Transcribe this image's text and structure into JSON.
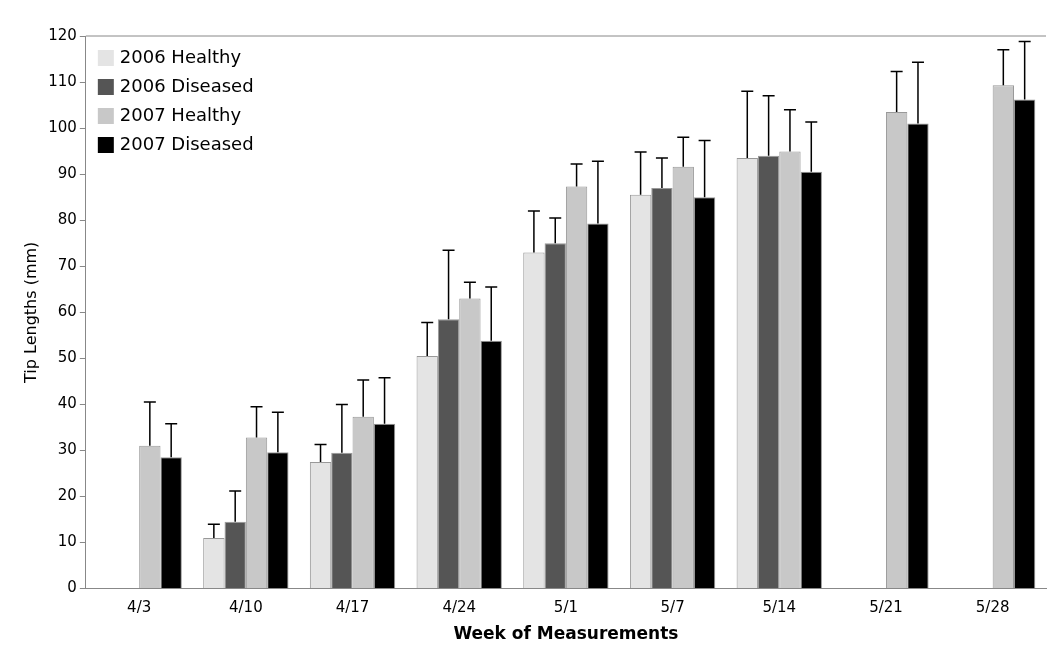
{
  "chart_data": {
    "type": "bar",
    "xlabel": "Week of Measurements",
    "ylabel": "Tip Lengths (mm)",
    "categories": [
      "4/3",
      "4/10",
      "4/17",
      "4/24",
      "5/1",
      "5/7",
      "5/14",
      "5/21",
      "5/28"
    ],
    "series": [
      {
        "name": "2006 Healthy",
        "color": "#e4e4e4",
        "values": [
          null,
          11,
          27.5,
          50.5,
          73,
          85.5,
          93.5,
          null,
          null
        ],
        "errors": [
          null,
          [
            11,
            14
          ],
          [
            27.5,
            31.3
          ],
          [
            50.5,
            57.8
          ],
          [
            73,
            82
          ],
          [
            85.5,
            94.8
          ],
          [
            93.5,
            108
          ],
          null,
          null
        ]
      },
      {
        "name": "2006 Diseased",
        "color": "#555555",
        "values": [
          null,
          14.5,
          29.5,
          58.5,
          75,
          87,
          94,
          null,
          null
        ],
        "errors": [
          null,
          [
            14.5,
            21.2
          ],
          [
            29.5,
            40
          ],
          [
            58.5,
            73.5
          ],
          [
            75,
            80.5
          ],
          [
            87,
            93.5
          ],
          [
            94,
            107
          ],
          null,
          null
        ]
      },
      {
        "name": "2007 Healthy",
        "color": "#c8c8c8",
        "values": [
          31,
          32.8,
          37.3,
          63,
          87.3,
          91.6,
          94.9,
          103.5,
          109.3
        ],
        "errors": [
          [
            31,
            40.5
          ],
          [
            32.8,
            39.5
          ],
          [
            37.3,
            45.3
          ],
          [
            63,
            66.5
          ],
          [
            87.3,
            92.2
          ],
          [
            91.6,
            98
          ],
          [
            94.9,
            104
          ],
          [
            103.5,
            112.3
          ],
          [
            109.3,
            117
          ]
        ]
      },
      {
        "name": "2007 Diseased",
        "color": "#000000",
        "values": [
          28.5,
          29.6,
          35.8,
          53.8,
          79.3,
          85,
          90.5,
          101,
          106.2
        ],
        "errors": [
          [
            28.5,
            35.8
          ],
          [
            29.6,
            38.3
          ],
          [
            35.8,
            45.8
          ],
          [
            53.8,
            65.5
          ],
          [
            79.3,
            92.8
          ],
          [
            85,
            97.3
          ],
          [
            90.5,
            101.3
          ],
          [
            101,
            114.3
          ],
          [
            106.2,
            118.8
          ]
        ]
      }
    ],
    "ylim": [
      0,
      120
    ],
    "yticks": [
      0,
      10,
      20,
      30,
      40,
      50,
      60,
      70,
      80,
      90,
      100,
      110,
      120
    ],
    "grid": false,
    "legend": "top left"
  }
}
